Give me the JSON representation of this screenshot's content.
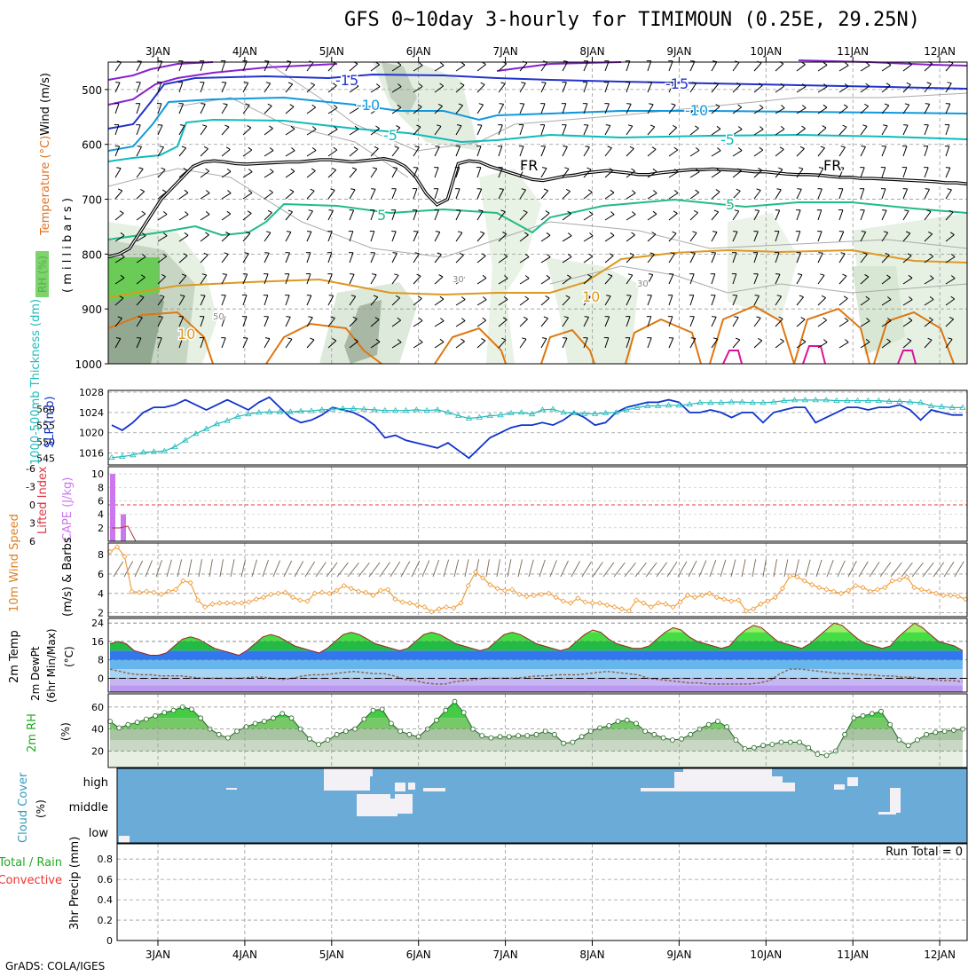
{
  "title": "GFS 0~10day 3-hourly for TIMIMOUN (0.25E, 29.25N)",
  "credit": "GrADS: COLA/IGES",
  "colors": {
    "temp_cold": "#2233cc",
    "temp_minus10": "#1199dd",
    "temp_minus5": "#11bbbb",
    "freezing": "#000000",
    "temp_plus5": "#22bb88",
    "temp_plus10": "#dd9922",
    "temp_warm": "#dd7711",
    "temp_hot": "#dd1199",
    "purple": "#8822cc",
    "slp": "#1133cc",
    "thickness": "#22bbbb",
    "cape": "#cc77ee",
    "wind_speed": "#ee9933",
    "cloud": "#6aabd8",
    "cloud_clear": "#f3f0f6"
  },
  "chart_data": [
    {
      "id": "upper-air",
      "type": "heatmap",
      "ylabel_parts": [
        "Wind (m/s)",
        "Temperature (°C)",
        "RH (%)"
      ],
      "yunit": "( m i l l i b a r s )",
      "yticks": [
        "500",
        "600",
        "700",
        "800",
        "900",
        "1000"
      ],
      "contour_labels": [
        "-15",
        "-10",
        "-5",
        "FR",
        "5",
        "10",
        "30",
        "50"
      ],
      "x_days": [
        "3JAN",
        "4JAN",
        "5JAN",
        "6JAN",
        "7JAN",
        "8JAN",
        "9JAN",
        "10JAN",
        "11JAN",
        "12JAN"
      ],
      "freezing_level_mb": [
        805,
        800,
        790,
        760,
        730,
        700,
        680,
        660,
        640,
        632,
        630,
        632,
        635,
        636,
        635,
        634,
        633,
        632,
        632,
        630,
        628,
        628,
        630,
        632,
        630,
        628,
        626,
        630,
        640,
        660,
        690,
        710,
        700,
        635,
        630,
        632,
        640,
        646,
        652,
        658,
        664,
        666,
        662,
        658,
        656,
        652,
        650,
        648,
        650,
        652,
        655,
        655,
        652,
        650,
        648,
        646,
        646,
        645,
        646,
        647,
        648,
        650,
        650,
        652,
        654,
        655,
        655,
        656,
        658,
        660,
        660,
        662,
        662,
        663,
        664,
        665,
        666,
        667,
        668,
        670,
        670,
        672
      ]
    },
    {
      "id": "slp-thickness",
      "type": "line",
      "ylabel": "SLP (mb)",
      "ylabel2": "1000-500mb Thickness (dm)",
      "yticks_slp": [
        "1016",
        "1020",
        "1024",
        "1028"
      ],
      "yticks_thk": [
        "545",
        "550",
        "555",
        "560"
      ],
      "series": [
        {
          "name": "SLP",
          "values": [
            1021.5,
            1020.5,
            1022,
            1024,
            1025,
            1025,
            1025.5,
            1026.5,
            1025.5,
            1024.5,
            1025.5,
            1026.5,
            1025.5,
            1024.5,
            1026,
            1027,
            1025,
            1023,
            1022,
            1022.5,
            1023.5,
            1025,
            1024.5,
            1024,
            1023,
            1021.5,
            1019,
            1019.5,
            1018.5,
            1018,
            1017.5,
            1017,
            1018,
            1016.5,
            1015,
            1017,
            1019,
            1020,
            1021,
            1021.5,
            1021.5,
            1022,
            1021.5,
            1022.5,
            1024,
            1023,
            1021.5,
            1022,
            1024,
            1025,
            1025.5,
            1026,
            1026,
            1026.5,
            1026,
            1024,
            1024,
            1024.5,
            1024,
            1023,
            1024,
            1024,
            1022,
            1024,
            1024.5,
            1025,
            1025,
            1022,
            1023,
            1024,
            1025,
            1025,
            1024.5,
            1025,
            1025,
            1025.5,
            1024.5,
            1022.5,
            1024.5,
            1024,
            1023.5,
            1023.5
          ]
        },
        {
          "name": "Thickness",
          "values": [
            545.2,
            545.5,
            546,
            546.8,
            547,
            547.2,
            548.5,
            550.5,
            552.5,
            554,
            555.5,
            556.5,
            557.8,
            558.5,
            559,
            559.2,
            559.2,
            559.2,
            559.4,
            559.5,
            559.8,
            560,
            560.2,
            560.2,
            560,
            559.8,
            559.6,
            559.6,
            559.6,
            559.8,
            559.6,
            559.8,
            559,
            558,
            557.2,
            557.5,
            558,
            558.2,
            558.8,
            559,
            558.5,
            559.8,
            560,
            559,
            558.8,
            558.6,
            558.6,
            558.8,
            559,
            559.8,
            560.5,
            561,
            561,
            561.2,
            561.2,
            561.5,
            562,
            562,
            562,
            562.2,
            562.2,
            562,
            562,
            562.2,
            562.6,
            562.8,
            562.8,
            562.8,
            562.8,
            562.6,
            562.6,
            562.6,
            562.6,
            562.6,
            562.4,
            562.4,
            562.2,
            562,
            561,
            560.8,
            560.5,
            560.5
          ]
        }
      ]
    },
    {
      "id": "cape-li",
      "type": "bar",
      "ylabel": "CAPE (J/kg)",
      "ylabel2": "Lifted Index",
      "yticks_cape": [
        "2",
        "4",
        "6",
        "8",
        "10"
      ],
      "yticks_li": [
        "6",
        "3",
        "0",
        "-3",
        "-6"
      ],
      "series": [
        {
          "name": "CAPE",
          "values": [
            10,
            0,
            4,
            0,
            0,
            0,
            0
          ]
        },
        {
          "name": "Lifted Index",
          "values": [
            3.8,
            3.8,
            3.5,
            6
          ]
        }
      ]
    },
    {
      "id": "wind-10m",
      "type": "line",
      "ylabel": "10m Wind Speed (m/s) & Barbs",
      "yticks": [
        "2",
        "4",
        "6",
        "8"
      ],
      "series": [
        {
          "name": "10m Wind Speed",
          "values": [
            8.3,
            8.8,
            7.8,
            4.2,
            4.1,
            4.2,
            4.1,
            3.9,
            4.2,
            4.4,
            5.3,
            5.1,
            3.3,
            2.6,
            2.9,
            3.0,
            3.0,
            3.0,
            3.0,
            3.1,
            3.4,
            3.6,
            3.9,
            4.0,
            4.1,
            3.6,
            3.3,
            3.2,
            4.0,
            4.1,
            4.0,
            4.3,
            4.8,
            4.5,
            4.2,
            4.1,
            3.8,
            4.3,
            4.4,
            3.4,
            3.1,
            3.0,
            2.8,
            2.6,
            2.1,
            2.4,
            2.6,
            2.5,
            3.0,
            4.8,
            6.2,
            5.6,
            4.9,
            4.5,
            4.3,
            4.4,
            3.9,
            3.7,
            3.8,
            3.9,
            4.0,
            3.6,
            3.2,
            3.0,
            3.5,
            3.1,
            3.0,
            3.0,
            2.8,
            2.6,
            2.4,
            2.2,
            3.3,
            3.0,
            2.6,
            3.0,
            2.9,
            2.6,
            3.1,
            3.8,
            3.6,
            3.8,
            4.0,
            3.6,
            3.4,
            3.2,
            3.3,
            2.2,
            2.4,
            2.9,
            3.2,
            3.6,
            4.5,
            5.8,
            5.7,
            5.3,
            4.9,
            4.6,
            4.4,
            4.2,
            4.0,
            4.3,
            4.8,
            4.6,
            4.2,
            4.4,
            4.6,
            5.3,
            5.4,
            5.7,
            4.6,
            4.4,
            4.2,
            4.0,
            3.8,
            3.8,
            3.7,
            3.4
          ]
        }
      ]
    },
    {
      "id": "temp-2m",
      "type": "area",
      "ylabel": "2m Temp 2m DewPt (6hr Min/Max) (°C)",
      "yticks": [
        "0",
        "8",
        "16",
        "24"
      ],
      "series": [
        {
          "name": "2m Temp",
          "values": [
            15,
            16,
            15,
            12,
            11,
            10,
            10,
            11,
            14,
            17,
            18,
            17,
            15,
            13,
            12,
            11,
            10,
            12,
            15,
            18,
            19,
            18,
            16,
            14,
            13,
            12,
            11,
            13,
            16,
            19,
            20,
            19,
            17,
            15,
            14,
            13,
            12,
            13,
            16,
            19,
            20,
            19,
            17,
            15,
            14,
            13,
            12,
            13,
            16,
            19,
            20,
            19,
            17,
            15,
            14,
            13,
            12,
            13,
            16,
            19,
            21,
            20,
            17,
            15,
            14,
            13,
            13,
            14,
            17,
            20,
            22,
            21,
            18,
            16,
            15,
            14,
            13,
            14,
            18,
            21,
            23,
            22,
            19,
            16,
            15,
            14,
            13,
            15,
            18,
            21,
            24,
            23,
            20,
            17,
            15,
            14,
            13,
            14,
            18,
            21,
            24,
            22,
            19,
            16,
            15,
            14,
            12
          ]
        },
        {
          "name": "2m DewPt",
          "values": [
            4,
            3,
            2,
            1.5,
            1.5,
            1,
            1,
            1,
            0.5,
            0,
            0,
            0,
            0,
            0,
            0.5,
            0.5,
            0,
            -0.5,
            0,
            1,
            1.5,
            1.5,
            2,
            2.5,
            3,
            2.5,
            2,
            2,
            1,
            -0.5,
            -1,
            -2,
            -2.5,
            -2.5,
            -1.5,
            -1,
            -0.5,
            0,
            0,
            0,
            0,
            0.5,
            1,
            1,
            1.5,
            1.5,
            1.5,
            2,
            2.5,
            3,
            2.5,
            2,
            1.5,
            0,
            -0.5,
            -1,
            -1.5,
            -2,
            -2,
            -2.5,
            -2.5,
            -2.5,
            -2.5,
            -2.5,
            -2,
            -1,
            2,
            4,
            4,
            3.5,
            3,
            2.5,
            2,
            2,
            1.5,
            1.5,
            1,
            1,
            0.5,
            0.5,
            0,
            -0.5,
            -1,
            -1,
            -1.5
          ]
        }
      ]
    },
    {
      "id": "rh-2m",
      "type": "area",
      "ylabel": "2m RH (%)",
      "yticks": [
        "20",
        "40",
        "60"
      ],
      "series": [
        {
          "name": "2m RH",
          "values": [
            47,
            41,
            44,
            46,
            49,
            52,
            55,
            57,
            60,
            58,
            50,
            40,
            35,
            32,
            38,
            42,
            45,
            47,
            50,
            54,
            50,
            40,
            31,
            26,
            30,
            35,
            38,
            40,
            49,
            57,
            58,
            45,
            38,
            35,
            33,
            40,
            48,
            57,
            65,
            55,
            40,
            34,
            32,
            33,
            33,
            34,
            34,
            35,
            38,
            35,
            27,
            28,
            33,
            38,
            41,
            43,
            47,
            48,
            45,
            38,
            35,
            32,
            30,
            31,
            35,
            40,
            44,
            47,
            42,
            30,
            22,
            23,
            25,
            26,
            28,
            28,
            28,
            23,
            17,
            16,
            20,
            35,
            50,
            52,
            54,
            56,
            44,
            30,
            25,
            30,
            35,
            37,
            38,
            39,
            40
          ]
        }
      ]
    },
    {
      "id": "cloud",
      "type": "heatmap",
      "ylabel": "Cloud Cover (%)",
      "yticks": [
        "high",
        "middle",
        "low"
      ]
    },
    {
      "id": "precip",
      "type": "bar",
      "ylabel": "3hr Precip (mm)",
      "ylabel2": "Total / Rain Convective",
      "yticks": [
        "0",
        "0.2",
        "0.4",
        "0.6",
        "0.8"
      ],
      "annotation": "Run Total = 0",
      "values": []
    }
  ]
}
